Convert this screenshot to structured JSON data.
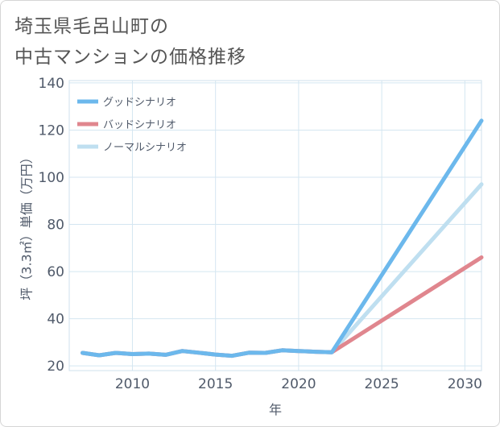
{
  "title": {
    "line1": "埼玉県毛呂山町の",
    "line2": "中古マンションの価格推移"
  },
  "chart_data": {
    "type": "line",
    "xlabel": "年",
    "ylabel": "坪（3.3㎡）単価（万円）",
    "xlim": [
      2006.2,
      2031
    ],
    "ylim": [
      18,
      141
    ],
    "xticks": [
      2010,
      2015,
      2020,
      2025,
      2030
    ],
    "yticks": [
      20,
      40,
      60,
      80,
      100,
      120,
      140
    ],
    "xgrid": [
      2010,
      2015,
      2020,
      2025,
      2030
    ],
    "ygrid": [
      20,
      40,
      60,
      80,
      100,
      120,
      140
    ],
    "legend_position": "top-left",
    "series": [
      {
        "name": "グッドシナリオ",
        "color": "#6cb8ec",
        "x": [
          2007,
          2008,
          2009,
          2010,
          2011,
          2012,
          2013,
          2014,
          2015,
          2016,
          2017,
          2018,
          2019,
          2020,
          2021,
          2022,
          2031
        ],
        "values": [
          25.5,
          24.5,
          25.5,
          25,
          25.2,
          24.7,
          26.3,
          25.6,
          24.8,
          24.3,
          25.6,
          25.5,
          26.6,
          26.3,
          26,
          25.8,
          124
        ]
      },
      {
        "name": "バッドシナリオ",
        "color": "#e0868e",
        "x": [
          2007,
          2008,
          2009,
          2010,
          2011,
          2012,
          2013,
          2014,
          2015,
          2016,
          2017,
          2018,
          2019,
          2020,
          2021,
          2022,
          2031
        ],
        "values": [
          25.5,
          24.5,
          25.5,
          25,
          25.2,
          24.7,
          26.3,
          25.6,
          24.8,
          24.3,
          25.6,
          25.5,
          26.6,
          26.3,
          26,
          25.8,
          66
        ]
      },
      {
        "name": "ノーマルシナリオ",
        "color": "#bfdff0",
        "x": [
          2007,
          2008,
          2009,
          2010,
          2011,
          2012,
          2013,
          2014,
          2015,
          2016,
          2017,
          2018,
          2019,
          2020,
          2021,
          2022,
          2031
        ],
        "values": [
          25.5,
          24.5,
          25.5,
          25,
          25.2,
          24.7,
          26.3,
          25.6,
          24.8,
          24.3,
          25.6,
          25.5,
          26.6,
          26.3,
          26,
          25.8,
          97
        ]
      }
    ]
  }
}
